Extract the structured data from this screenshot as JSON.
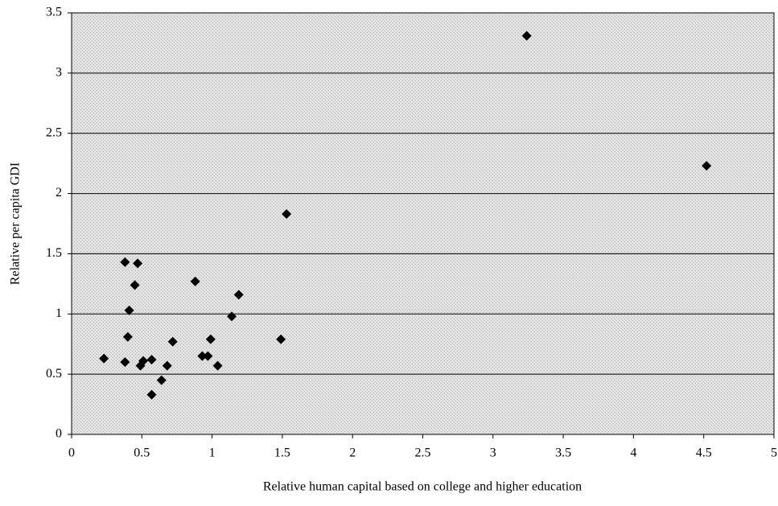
{
  "chart_data": {
    "type": "scatter",
    "x_label": "Relative human capital based on college and higher education",
    "y_label": "Relative per capita GDI",
    "x": [
      3.24,
      4.52,
      1.53,
      0.38,
      0.47,
      0.45,
      0.88,
      1.19,
      0.41,
      1.14,
      0.4,
      0.72,
      0.99,
      1.49,
      0.93,
      0.97,
      0.23,
      0.38,
      0.51,
      0.57,
      0.49,
      0.68,
      1.04,
      0.64,
      0.57
    ],
    "values": [
      3.31,
      2.23,
      1.83,
      1.43,
      1.42,
      1.24,
      1.27,
      1.16,
      1.03,
      0.98,
      0.81,
      0.77,
      0.79,
      0.79,
      0.65,
      0.65,
      0.63,
      0.6,
      0.61,
      0.62,
      0.57,
      0.57,
      0.57,
      0.45,
      0.33
    ],
    "color": "#000000",
    "xlim": [
      0,
      5
    ],
    "xticks": [
      0,
      0.5,
      1,
      1.5,
      2,
      2.5,
      3,
      3.5,
      4,
      4.5,
      5
    ],
    "ylim": [
      0,
      3.5
    ],
    "yticks": [
      0,
      0.5,
      1,
      1.5,
      2,
      2.5,
      3,
      3.5
    ],
    "grid": true
  }
}
